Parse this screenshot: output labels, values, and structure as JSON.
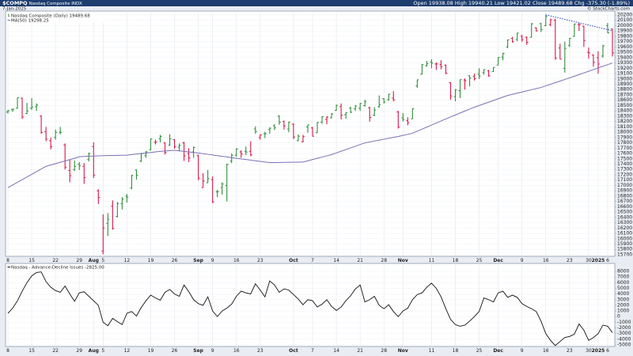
{
  "header": {
    "symbol": "$COMPQ",
    "name": "Nasdaq Composite INDX",
    "date": "7-Jan-2025",
    "credit": "© StockCharts.com",
    "open_label": "Open",
    "high_label": "High",
    "low_label": "Low",
    "close_label": "Close",
    "chg_label": "Chg",
    "chg": "-375.30 (-1.89%)"
  },
  "chart_data": [
    {
      "type": "ohlc",
      "name": "Nasdaq Composite (Daily)",
      "up_color": "#2f8f3a",
      "down_color": "#d8174a",
      "grid": true,
      "open": [
        18380,
        18420,
        18450,
        18640,
        18350,
        18450,
        18480,
        18300,
        18010,
        17840,
        17900,
        18000,
        17760,
        17280,
        17300,
        17400,
        17360,
        17490,
        17730,
        16900,
        15770,
        16290,
        16610,
        16420,
        16660,
        16800,
        16950,
        17290,
        17460,
        17560,
        17670,
        17810,
        17880,
        17800,
        17760,
        17860,
        17720,
        17800,
        17600,
        17630,
        17560,
        16960,
        17050,
        17110,
        16880,
        16960,
        17000,
        17460,
        17570,
        17630,
        17640,
        17640,
        18060,
        17900,
        17970,
        18050,
        18120,
        18300,
        18200,
        18060,
        18150,
        17840,
        17820,
        18100,
        18080,
        17990,
        18190,
        18240,
        18270,
        18410,
        18480,
        18330,
        18450,
        18440,
        18450,
        18500,
        18460,
        18320,
        18480,
        18630,
        18610,
        18640,
        18380,
        18270,
        18220,
        18250,
        18870,
        19090,
        19250,
        19320,
        19280,
        19270,
        19260,
        18930,
        18670,
        18780,
        18980,
        19060,
        19050,
        19090,
        19120,
        19150,
        19140,
        19260,
        19410,
        19600,
        19760,
        19740,
        19800,
        19780,
        19780,
        19960,
        20040,
        20000,
        20020,
        20100,
        19580,
        19200,
        19630,
        19800,
        20020,
        19990,
        19500,
        19450,
        19400,
        19430,
        20000,
        19938.08
      ],
      "high": [
        18420,
        18450,
        18650,
        18650,
        18550,
        18640,
        18540,
        18320,
        18100,
        17900,
        18050,
        18100,
        17790,
        17490,
        17470,
        17440,
        17420,
        17620,
        17810,
        16930,
        16460,
        16480,
        16720,
        16690,
        16780,
        16840,
        17200,
        17300,
        17610,
        17650,
        17880,
        17860,
        17950,
        17810,
        17960,
        17870,
        17790,
        17820,
        17700,
        17730,
        17580,
        17230,
        17290,
        17170,
        16920,
        17060,
        17410,
        17600,
        17700,
        17660,
        17730,
        17830,
        18110,
        17960,
        18010,
        18090,
        18150,
        18320,
        18220,
        18200,
        18170,
        17960,
        17950,
        18140,
        18100,
        18190,
        18300,
        18300,
        18360,
        18520,
        18540,
        18370,
        18480,
        18510,
        18550,
        18610,
        18480,
        18470,
        18690,
        18640,
        18720,
        18770,
        18400,
        18360,
        18280,
        18450,
        18990,
        19280,
        19340,
        19370,
        19310,
        19350,
        19270,
        18940,
        18810,
        18990,
        19010,
        19070,
        19100,
        19200,
        19180,
        19170,
        19220,
        19410,
        19490,
        19740,
        19790,
        19870,
        19830,
        19800,
        20050,
        19970,
        20050,
        20204,
        20130,
        20130,
        19660,
        19700,
        19770,
        20040,
        20050,
        20000,
        19590,
        19460,
        19520,
        19640,
        20050,
        19940.21
      ],
      "low": [
        18350,
        18380,
        18440,
        18250,
        18340,
        18420,
        18400,
        17970,
        17830,
        17680,
        17860,
        17960,
        17300,
        17060,
        17270,
        17290,
        17030,
        17450,
        17140,
        16650,
        15708,
        16050,
        16170,
        16400,
        16550,
        16680,
        16930,
        17110,
        17440,
        17520,
        17660,
        17770,
        17810,
        17580,
        17740,
        17690,
        17640,
        17460,
        17440,
        17520,
        17100,
        16960,
        17050,
        16670,
        16780,
        16830,
        16700,
        17420,
        17540,
        17520,
        17570,
        17550,
        17970,
        17860,
        17890,
        17970,
        18040,
        18140,
        18050,
        18000,
        17870,
        17830,
        17810,
        17990,
        17920,
        17990,
        18160,
        18150,
        18260,
        18400,
        18240,
        18250,
        18360,
        18400,
        18400,
        18480,
        18200,
        18300,
        18460,
        18540,
        18590,
        18580,
        18070,
        18200,
        18130,
        18250,
        18830,
        19080,
        19230,
        19200,
        19170,
        19180,
        19090,
        18610,
        18580,
        18640,
        18800,
        18860,
        18970,
        19000,
        19080,
        19040,
        19130,
        19260,
        19350,
        19580,
        19680,
        19710,
        19700,
        19640,
        19780,
        19890,
        19880,
        19990,
        19990,
        19360,
        19370,
        19120,
        19600,
        19790,
        19900,
        19600,
        19380,
        19230,
        19100,
        19400,
        19860,
        19421.02
      ],
      "close": [
        18403,
        18429,
        18647,
        18283,
        18398,
        18473,
        18509,
        17996,
        17871,
        17726,
        17997,
        17998,
        17342,
        17182,
        17358,
        17370,
        17147,
        17599,
        17194,
        16776,
        16200,
        16366,
        16195,
        16660,
        16745,
        16780,
        17188,
        17193,
        17595,
        17631,
        17877,
        17817,
        17919,
        17619,
        17878,
        17725,
        17754,
        17557,
        17516,
        17714,
        17136,
        17084,
        17128,
        16691,
        16884,
        17026,
        17396,
        17569,
        17683,
        17592,
        17628,
        17574,
        18014,
        17948,
        17974,
        18075,
        18082,
        18190,
        18119,
        18189,
        17910,
        17925,
        17918,
        18138,
        17924,
        18183,
        18291,
        18282,
        18343,
        18502,
        18316,
        18367,
        18374,
        18490,
        18540,
        18573,
        18277,
        18415,
        18519,
        18567,
        18712,
        18607,
        18095,
        18239,
        18179,
        18439,
        18983,
        19269,
        19287,
        19299,
        19281,
        19231,
        19107,
        18680,
        18792,
        18987,
        18966,
        19016,
        19004,
        19054,
        19175,
        19060,
        19218,
        19404,
        19481,
        19735,
        19701,
        19860,
        19737,
        19687,
        20034,
        19903,
        19927,
        20174,
        20109,
        19393,
        19372,
        19573,
        19764,
        20031,
        20020,
        19722,
        19487,
        19311,
        19280,
        19622,
        19865,
        19489.68
      ],
      "ma": {
        "name": "MA(50)",
        "color": "#7a70b4",
        "values": [
          16960,
          17010,
          17060,
          17110,
          17160,
          17210,
          17260,
          17310,
          17360,
          17385,
          17410,
          17435,
          17460,
          17485,
          17510,
          17540,
          17545,
          17550,
          17552,
          17556,
          17560,
          17562,
          17564,
          17566,
          17568,
          17570,
          17580,
          17590,
          17600,
          17610,
          17620,
          17630,
          17640,
          17647,
          17654,
          17660,
          17650,
          17640,
          17630,
          17620,
          17610,
          17597,
          17585,
          17572,
          17560,
          17547,
          17535,
          17522,
          17510,
          17498,
          17487,
          17476,
          17464,
          17453,
          17441,
          17430,
          17430,
          17432,
          17433,
          17435,
          17437,
          17438,
          17440,
          17463,
          17487,
          17510,
          17533,
          17557,
          17580,
          17611,
          17643,
          17674,
          17706,
          17737,
          17769,
          17800,
          17817,
          17834,
          17851,
          17869,
          17886,
          17903,
          17920,
          17940,
          17960,
          17980,
          18019,
          18057,
          18096,
          18134,
          18173,
          18211,
          18250,
          18287,
          18323,
          18360,
          18397,
          18433,
          18470,
          18501,
          18533,
          18564,
          18596,
          18627,
          18659,
          18690,
          18711,
          18733,
          18754,
          18776,
          18797,
          18819,
          18840,
          18870,
          18900,
          18930,
          18960,
          18990,
          19020,
          19051,
          19082,
          19113,
          19144,
          19176,
          19207,
          19238,
          19269,
          19298.25
        ]
      },
      "trendline": {
        "color": "#2a3fc4",
        "x": [
          113,
          127
        ],
        "values": [
          20204,
          19905
        ]
      },
      "ylim": [
        15670,
        20274
      ],
      "yticks": [
        15700,
        15800,
        15900,
        16000,
        16100,
        16200,
        16300,
        16400,
        16500,
        16600,
        16700,
        16800,
        16900,
        17000,
        17100,
        17200,
        17300,
        17400,
        17500,
        17600,
        17700,
        17800,
        17900,
        18000,
        18100,
        18200,
        18300,
        18400,
        18500,
        18600,
        18700,
        18800,
        18900,
        19000,
        19100,
        19200,
        19300,
        19400,
        19500,
        19600,
        19700,
        19800,
        19900,
        20000,
        20100,
        20200
      ],
      "xticks": [
        {
          "value": 0,
          "label": "8"
        },
        {
          "value": 5,
          "label": "15"
        },
        {
          "value": 10,
          "label": "22"
        },
        {
          "value": 15,
          "label": "29"
        },
        {
          "value": 18,
          "label": "Aug"
        },
        {
          "value": 20,
          "label": "5"
        },
        {
          "value": 25,
          "label": "12"
        },
        {
          "value": 30,
          "label": "19"
        },
        {
          "value": 35,
          "label": "26"
        },
        {
          "value": 40,
          "label": "Sep"
        },
        {
          "value": 43,
          "label": "9"
        },
        {
          "value": 48,
          "label": "16"
        },
        {
          "value": 53,
          "label": "23"
        },
        {
          "value": 60,
          "label": "Oct"
        },
        {
          "value": 64,
          "label": "7"
        },
        {
          "value": 69,
          "label": "14"
        },
        {
          "value": 74,
          "label": "21"
        },
        {
          "value": 79,
          "label": "28"
        },
        {
          "value": 83,
          "label": "Nov"
        },
        {
          "value": 89,
          "label": "11"
        },
        {
          "value": 94,
          "label": "18"
        },
        {
          "value": 99,
          "label": "25"
        },
        {
          "value": 103,
          "label": "Dec"
        },
        {
          "value": 108,
          "label": "9"
        },
        {
          "value": 113,
          "label": "16"
        },
        {
          "value": 118,
          "label": "23"
        },
        {
          "value": 122,
          "label": "30"
        },
        {
          "value": 124,
          "label": "2025"
        },
        {
          "value": 126,
          "label": "6"
        }
      ]
    },
    {
      "type": "line",
      "grid": true,
      "series": [
        {
          "name": "Nasdaq - Advance-Decline Issues",
          "color": "#111111",
          "value_label": "-2825.00",
          "values": [
            580,
            1500,
            2800,
            4500,
            6000,
            7200,
            7800,
            7900,
            6200,
            5200,
            4600,
            4300,
            5400,
            4000,
            2700,
            4200,
            4400,
            3600,
            2800,
            2000,
            -1000,
            -1600,
            -300,
            -900,
            -1400,
            600,
            900,
            100,
            1600,
            2800,
            3800,
            3300,
            2900,
            4300,
            4800,
            4000,
            3600,
            5600,
            4400,
            3000,
            2300,
            2000,
            3500,
            1000,
            0,
            1000,
            1500,
            2200,
            3600,
            4500,
            4200,
            4000,
            5800,
            4700,
            3500,
            6300,
            5600,
            4300,
            4900,
            4700,
            3900,
            3100,
            2100,
            3000,
            2800,
            1700,
            2200,
            3000,
            1800,
            1100,
            1700,
            2800,
            3700,
            4900,
            5600,
            2600,
            3000,
            3600,
            2000,
            1400,
            2100,
            900,
            0,
            1000,
            1500,
            3000,
            3900,
            4200,
            5200,
            5900,
            5000,
            3500,
            1400,
            -500,
            -1400,
            -1700,
            -1500,
            -800,
            0,
            900,
            3300,
            3000,
            2600,
            4200,
            4500,
            3400,
            3800,
            3400,
            2300,
            1800,
            1400,
            900,
            -800,
            -3000,
            -4200,
            -5100,
            -4400,
            -3700,
            -3500,
            -3100,
            -1300,
            -2400,
            -4200,
            -3700,
            -3000,
            -1500,
            -1700,
            -2825
          ]
        }
      ],
      "ylim": [
        -5280,
        9400
      ],
      "yticks": [
        -5000,
        -4000,
        -3000,
        -2000,
        -1000,
        0,
        1000,
        2000,
        3000,
        4000,
        5000,
        6000,
        7000,
        8000
      ],
      "xticks": [
        {
          "value": 0,
          "label": "8"
        },
        {
          "value": 5,
          "label": "15"
        },
        {
          "value": 10,
          "label": "22"
        },
        {
          "value": 15,
          "label": "29"
        },
        {
          "value": 18,
          "label": "Aug"
        },
        {
          "value": 20,
          "label": "5"
        },
        {
          "value": 25,
          "label": "12"
        },
        {
          "value": 30,
          "label": "19"
        },
        {
          "value": 35,
          "label": "26"
        },
        {
          "value": 40,
          "label": "Sep"
        },
        {
          "value": 43,
          "label": "9"
        },
        {
          "value": 48,
          "label": "16"
        },
        {
          "value": 53,
          "label": "23"
        },
        {
          "value": 60,
          "label": "Oct"
        },
        {
          "value": 64,
          "label": "7"
        },
        {
          "value": 69,
          "label": "14"
        },
        {
          "value": 74,
          "label": "21"
        },
        {
          "value": 79,
          "label": "28"
        },
        {
          "value": 83,
          "label": "Nov"
        },
        {
          "value": 89,
          "label": "11"
        },
        {
          "value": 94,
          "label": "18"
        },
        {
          "value": 99,
          "label": "25"
        },
        {
          "value": 103,
          "label": "Dec"
        },
        {
          "value": 108,
          "label": "9"
        },
        {
          "value": 113,
          "label": "16"
        },
        {
          "value": 118,
          "label": "23"
        },
        {
          "value": 122,
          "label": "30"
        },
        {
          "value": 124,
          "label": "2025"
        },
        {
          "value": 126,
          "label": "6"
        }
      ]
    }
  ]
}
